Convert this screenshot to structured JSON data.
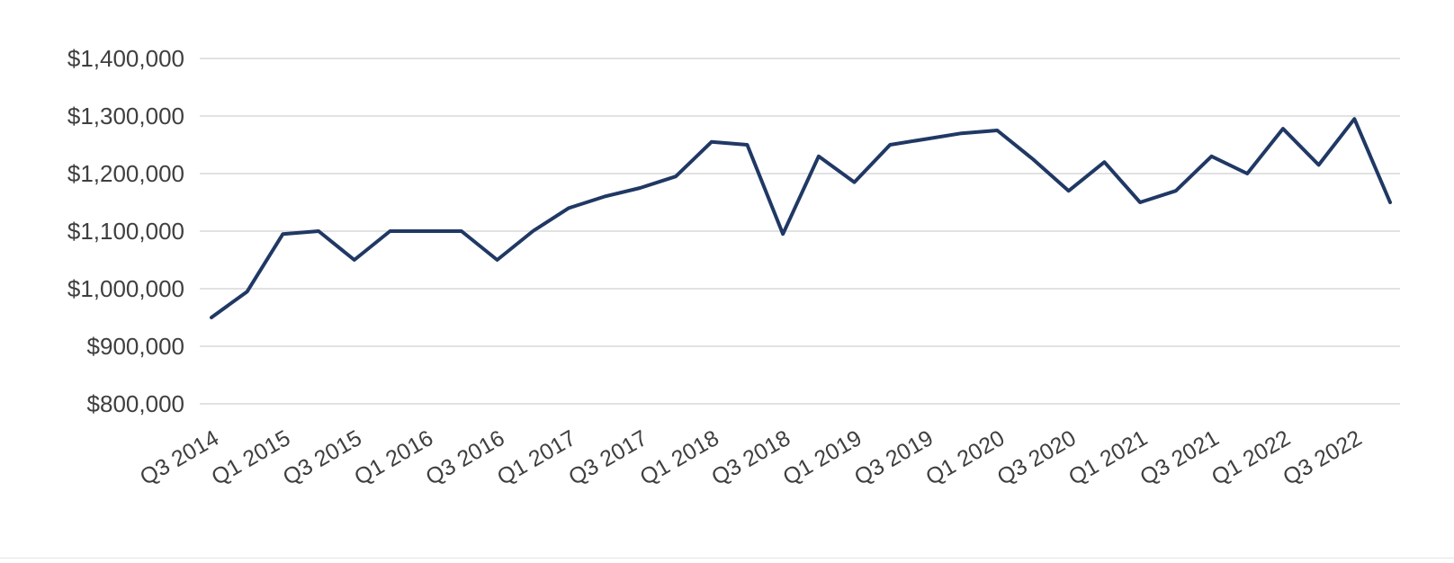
{
  "chart_data": {
    "type": "line",
    "title": "",
    "xlabel": "",
    "ylabel": "",
    "legend": "none",
    "grid": "horizontal",
    "series_color": "#203864",
    "grid_color": "#d9d9d9",
    "label_color": "#3f3f3f",
    "ylim": [
      800000,
      1400000
    ],
    "y_ticks": [
      {
        "value": 1400000,
        "label": "$1,400,000"
      },
      {
        "value": 1300000,
        "label": "$1,300,000"
      },
      {
        "value": 1200000,
        "label": "$1,200,000"
      },
      {
        "value": 1100000,
        "label": "$1,100,000"
      },
      {
        "value": 1000000,
        "label": "$1,000,000"
      },
      {
        "value": 900000,
        "label": "$900,000"
      },
      {
        "value": 800000,
        "label": "$800,000"
      }
    ],
    "x_ticks": [
      {
        "index": 0,
        "label": "Q3 2014"
      },
      {
        "index": 2,
        "label": "Q1 2015"
      },
      {
        "index": 4,
        "label": "Q3 2015"
      },
      {
        "index": 6,
        "label": "Q1 2016"
      },
      {
        "index": 8,
        "label": "Q3 2016"
      },
      {
        "index": 10,
        "label": "Q1 2017"
      },
      {
        "index": 12,
        "label": "Q3 2017"
      },
      {
        "index": 14,
        "label": "Q1 2018"
      },
      {
        "index": 16,
        "label": "Q3 2018"
      },
      {
        "index": 18,
        "label": "Q1 2019"
      },
      {
        "index": 20,
        "label": "Q3 2019"
      },
      {
        "index": 22,
        "label": "Q1 2020"
      },
      {
        "index": 24,
        "label": "Q3 2020"
      },
      {
        "index": 26,
        "label": "Q1 2021"
      },
      {
        "index": 28,
        "label": "Q3 2021"
      },
      {
        "index": 30,
        "label": "Q1 2022"
      },
      {
        "index": 32,
        "label": "Q3 2022"
      }
    ],
    "points": [
      {
        "x": "Q3 2014",
        "value": 950000
      },
      {
        "x": "Q4 2014",
        "value": 995000
      },
      {
        "x": "Q1 2015",
        "value": 1095000
      },
      {
        "x": "Q2 2015",
        "value": 1100000
      },
      {
        "x": "Q3 2015",
        "value": 1050000
      },
      {
        "x": "Q4 2015",
        "value": 1100000
      },
      {
        "x": "Q1 2016",
        "value": 1100000
      },
      {
        "x": "Q2 2016",
        "value": 1100000
      },
      {
        "x": "Q3 2016",
        "value": 1050000
      },
      {
        "x": "Q4 2016",
        "value": 1100000
      },
      {
        "x": "Q1 2017",
        "value": 1140000
      },
      {
        "x": "Q2 2017",
        "value": 1160000
      },
      {
        "x": "Q3 2017",
        "value": 1175000
      },
      {
        "x": "Q4 2017",
        "value": 1195000
      },
      {
        "x": "Q1 2018",
        "value": 1255000
      },
      {
        "x": "Q2 2018",
        "value": 1250000
      },
      {
        "x": "Q3 2018",
        "value": 1095000
      },
      {
        "x": "Q4 2018",
        "value": 1230000
      },
      {
        "x": "Q1 2019",
        "value": 1185000
      },
      {
        "x": "Q2 2019",
        "value": 1250000
      },
      {
        "x": "Q3 2019",
        "value": 1260000
      },
      {
        "x": "Q4 2019",
        "value": 1270000
      },
      {
        "x": "Q1 2020",
        "value": 1275000
      },
      {
        "x": "Q2 2020",
        "value": 1225000
      },
      {
        "x": "Q3 2020",
        "value": 1170000
      },
      {
        "x": "Q4 2020",
        "value": 1220000
      },
      {
        "x": "Q1 2021",
        "value": 1150000
      },
      {
        "x": "Q2 2021",
        "value": 1170000
      },
      {
        "x": "Q3 2021",
        "value": 1230000
      },
      {
        "x": "Q4 2021",
        "value": 1200000
      },
      {
        "x": "Q1 2022",
        "value": 1278000
      },
      {
        "x": "Q2 2022",
        "value": 1215000
      },
      {
        "x": "Q3 2022",
        "value": 1295000
      },
      {
        "x": "Q4 2022",
        "value": 1150000
      }
    ]
  }
}
